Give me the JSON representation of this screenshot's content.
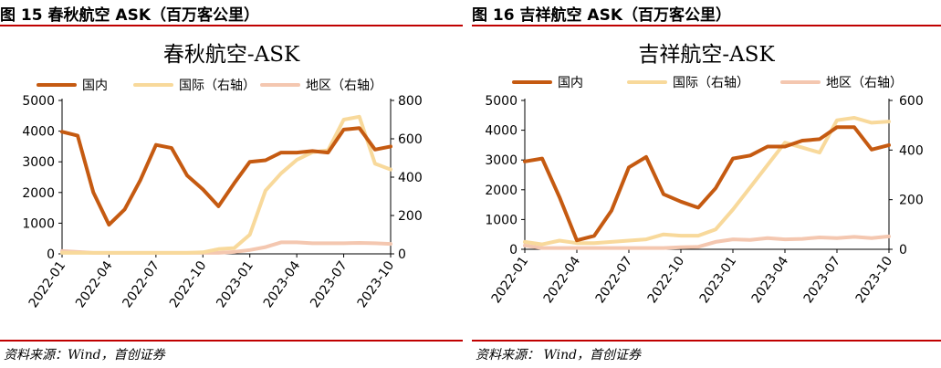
{
  "panels": [
    {
      "fig_title": "图 15 春秋航空 ASK（百万客公里）",
      "source": "资料来源：Wind，首创证券"
    },
    {
      "fig_title": "图 16 吉祥航空 ASK（百万客公里）",
      "source": "资料来源： Wind，首创证券"
    }
  ],
  "chart_data": [
    {
      "type": "line",
      "title": "春秋航空-ASK",
      "x": [
        "2022-01",
        "2022-02",
        "2022-03",
        "2022-04",
        "2022-05",
        "2022-06",
        "2022-07",
        "2022-08",
        "2022-09",
        "2022-10",
        "2022-11",
        "2022-12",
        "2023-01",
        "2023-02",
        "2023-03",
        "2023-04",
        "2023-05",
        "2023-06",
        "2023-07",
        "2023-08",
        "2023-09",
        "2023-10"
      ],
      "x_tick_labels": [
        "2022-01",
        "2022-04",
        "2022-07",
        "2022-10",
        "2023-01",
        "2023-04",
        "2023-07",
        "2023-10"
      ],
      "y_left": {
        "range": [
          0,
          5000
        ],
        "ticks": [
          "0",
          "1000",
          "2000",
          "3000",
          "4000",
          "5000"
        ]
      },
      "y_right": {
        "range": [
          0,
          800
        ],
        "ticks": [
          "0",
          "200",
          "400",
          "600",
          "800"
        ]
      },
      "legend_position": "top",
      "series": [
        {
          "name": "国内",
          "axis": "left",
          "color": "#c55a11",
          "values": [
            3980,
            3850,
            2000,
            950,
            1450,
            2400,
            3550,
            3450,
            2550,
            2100,
            1550,
            2300,
            3000,
            3050,
            3300,
            3300,
            3350,
            3300,
            4050,
            4100,
            3400,
            3500
          ]
        },
        {
          "name": "国际（右轴）",
          "axis": "right",
          "color": "#f8d99b",
          "values": [
            5,
            5,
            5,
            5,
            5,
            5,
            5,
            5,
            5,
            8,
            25,
            30,
            100,
            330,
            420,
            490,
            530,
            540,
            700,
            715,
            470,
            440
          ]
        },
        {
          "name": "地区（右轴）",
          "axis": "right",
          "color": "#f4c7b0",
          "values": [
            15,
            10,
            5,
            5,
            5,
            5,
            5,
            5,
            5,
            5,
            5,
            10,
            20,
            35,
            60,
            60,
            55,
            55,
            55,
            57,
            55,
            52
          ]
        }
      ]
    },
    {
      "type": "line",
      "title": "吉祥航空-ASK",
      "x": [
        "2022-01",
        "2022-02",
        "2022-03",
        "2022-04",
        "2022-05",
        "2022-06",
        "2022-07",
        "2022-08",
        "2022-09",
        "2022-10",
        "2022-11",
        "2022-12",
        "2023-01",
        "2023-02",
        "2023-03",
        "2023-04",
        "2023-05",
        "2023-06",
        "2023-07",
        "2023-08",
        "2023-09",
        "2023-10"
      ],
      "x_tick_labels": [
        "2022-01",
        "2022-04",
        "2022-07",
        "2022-10",
        "2023-01",
        "2023-04",
        "2023-07",
        "2023-10"
      ],
      "y_left": {
        "range": [
          0,
          5000
        ],
        "ticks": [
          "0",
          "1000",
          "2000",
          "3000",
          "4000",
          "5000"
        ]
      },
      "y_right": {
        "range": [
          0,
          600
        ],
        "ticks": [
          "0",
          "200",
          "400",
          "600"
        ]
      },
      "legend_position": "top",
      "series": [
        {
          "name": "国内",
          "axis": "left",
          "color": "#c55a11",
          "values": [
            2950,
            3050,
            1750,
            300,
            450,
            1300,
            2750,
            3100,
            1850,
            1600,
            1400,
            2050,
            3050,
            3150,
            3450,
            3450,
            3650,
            3700,
            4100,
            4100,
            3350,
            3500
          ]
        },
        {
          "name": "国际（右轴）",
          "axis": "right",
          "color": "#f8d99b",
          "values": [
            30,
            20,
            35,
            25,
            25,
            30,
            35,
            40,
            60,
            55,
            55,
            80,
            160,
            250,
            340,
            430,
            410,
            390,
            520,
            530,
            510,
            515
          ]
        },
        {
          "name": "地区（右轴）",
          "axis": "right",
          "color": "#f4c7b0",
          "values": [
            15,
            5,
            5,
            5,
            5,
            5,
            5,
            5,
            5,
            8,
            10,
            30,
            40,
            38,
            45,
            40,
            42,
            48,
            45,
            50,
            45,
            52
          ]
        }
      ]
    }
  ]
}
